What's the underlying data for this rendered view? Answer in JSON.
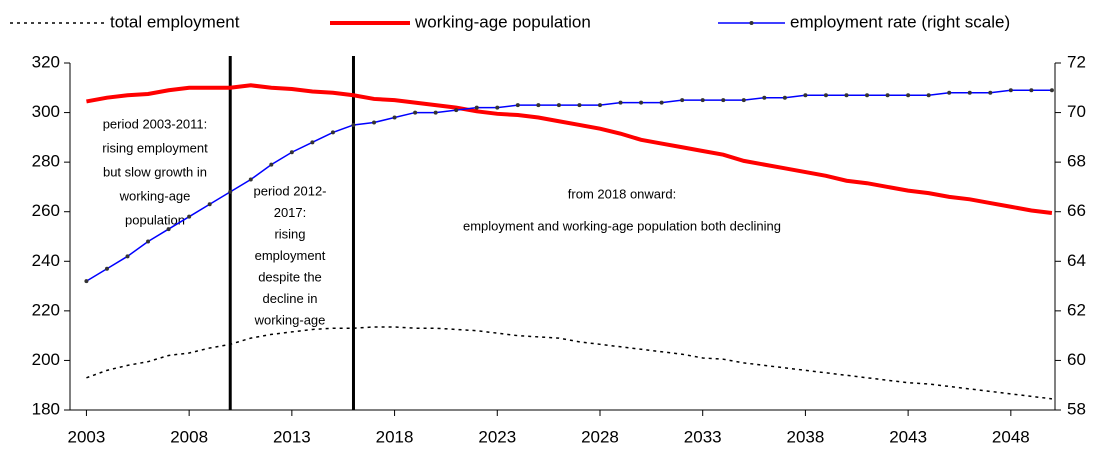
{
  "chart_data": {
    "type": "line",
    "x": [
      2003,
      2004,
      2005,
      2006,
      2007,
      2008,
      2009,
      2010,
      2011,
      2012,
      2013,
      2014,
      2015,
      2016,
      2017,
      2018,
      2019,
      2020,
      2021,
      2022,
      2023,
      2024,
      2025,
      2026,
      2027,
      2028,
      2029,
      2030,
      2031,
      2032,
      2033,
      2034,
      2035,
      2036,
      2037,
      2038,
      2039,
      2040,
      2041,
      2042,
      2043,
      2044,
      2045,
      2046,
      2047,
      2048,
      2049,
      2050
    ],
    "xlim": [
      2002.2,
      2050.15
    ],
    "xticks": [
      2003,
      2008,
      2013,
      2018,
      2023,
      2028,
      2033,
      2038,
      2043,
      2048
    ],
    "ylim": [
      180,
      320
    ],
    "yticks": [
      180,
      200,
      220,
      240,
      260,
      280,
      300,
      320
    ],
    "y2lim": [
      58,
      72
    ],
    "y2ticks": [
      58,
      60,
      62,
      64,
      66,
      68,
      70,
      72
    ],
    "grid": false,
    "legend": "top",
    "vlines": [
      2010,
      2016
    ],
    "annotations": [
      [
        "period 2003-2011:",
        "rising  employment",
        "but slow growth in",
        "working-age",
        "population"
      ],
      [
        "period 2012-",
        "2017:",
        "rising",
        "employment",
        "despite the",
        "decline in",
        "working-age"
      ],
      [
        "from 2018 onward:",
        "employment  and working-age population both declining"
      ]
    ],
    "series": [
      {
        "name": "total employment",
        "color": "#000000",
        "style": "dotted",
        "values": [
          193,
          196,
          198,
          199.5,
          202,
          203,
          205,
          206.5,
          209,
          210.5,
          211.5,
          212.5,
          213,
          213,
          213.5,
          213.5,
          213,
          213,
          212.5,
          212,
          211,
          210,
          209.5,
          209,
          207.5,
          206.5,
          205.5,
          204.5,
          203.5,
          202.5,
          201,
          200.5,
          199,
          198,
          197,
          196,
          195,
          194,
          193,
          192,
          191,
          190.5,
          189.5,
          188.5,
          187.5,
          186.5,
          185.5,
          184.5
        ]
      },
      {
        "name": "working-age population",
        "color": "#ff0000",
        "style": "thick",
        "values": [
          304.5,
          306,
          307,
          307.5,
          309,
          310,
          310,
          310,
          311,
          310,
          309.5,
          308.5,
          308,
          307,
          305.5,
          305,
          304,
          303,
          302,
          300.5,
          299.5,
          299,
          298,
          296.5,
          295,
          293.5,
          291.5,
          289,
          287.5,
          286,
          284.5,
          283,
          280.5,
          279,
          277.5,
          276,
          274.5,
          272.5,
          271.5,
          270,
          268.5,
          267.5,
          266,
          265,
          263.5,
          262,
          260.5,
          259.5
        ]
      },
      {
        "name": "employment rate (right scale)",
        "color": "#0000ff",
        "style": "marker",
        "axis": "y2",
        "values": [
          63.2,
          63.7,
          64.2,
          64.8,
          65.3,
          65.8,
          66.3,
          66.8,
          67.3,
          67.9,
          68.4,
          68.8,
          69.2,
          69.5,
          69.6,
          69.8,
          70.0,
          70.0,
          70.1,
          70.2,
          70.2,
          70.3,
          70.3,
          70.3,
          70.3,
          70.3,
          70.4,
          70.4,
          70.4,
          70.5,
          70.5,
          70.5,
          70.5,
          70.6,
          70.6,
          70.7,
          70.7,
          70.7,
          70.7,
          70.7,
          70.7,
          70.7,
          70.8,
          70.8,
          70.8,
          70.9,
          70.9,
          70.9
        ]
      }
    ]
  }
}
